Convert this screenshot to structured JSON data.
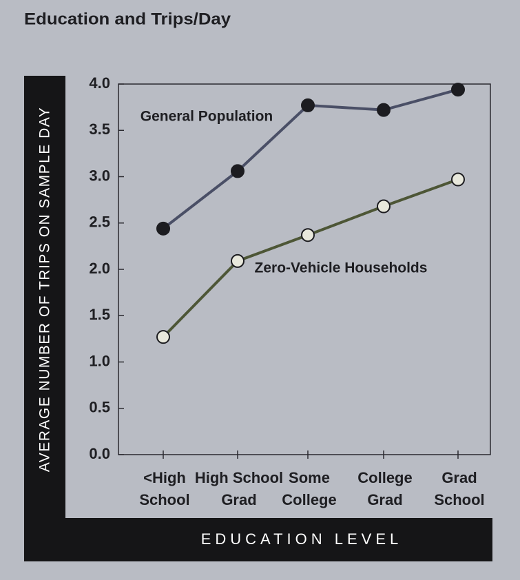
{
  "chart_data": {
    "type": "line",
    "title": "Education and Trips/Day",
    "y_label": "AVERAGE NUMBER OF TRIPS ON SAMPLE DAY",
    "x_label": "EDUCATION LEVEL",
    "categories": [
      [
        "<High",
        "School"
      ],
      [
        "High School",
        "Grad"
      ],
      [
        "Some",
        "College"
      ],
      [
        "College",
        "Grad"
      ],
      [
        "Grad",
        "School"
      ]
    ],
    "series": [
      {
        "name": "General Population",
        "color": "#4a4f66",
        "marker_fill": "#1c1c20",
        "values": [
          2.44,
          3.06,
          3.77,
          3.72,
          3.94
        ]
      },
      {
        "name": "Zero-Vehicle Households",
        "color": "#4d5636",
        "marker_fill": "#e8e8dc",
        "values": [
          1.27,
          2.09,
          2.37,
          2.68,
          2.97
        ]
      }
    ],
    "ylim": [
      0,
      4
    ],
    "yticks": [
      {
        "value": 0,
        "label": "0.0"
      },
      0.5,
      {
        "value": 1,
        "label": "1.0"
      },
      1.5,
      {
        "value": 2,
        "label": "2.0"
      },
      2.5,
      {
        "value": 3,
        "label": "3.0"
      },
      3.5,
      {
        "value": 4,
        "label": "4.0"
      }
    ]
  }
}
